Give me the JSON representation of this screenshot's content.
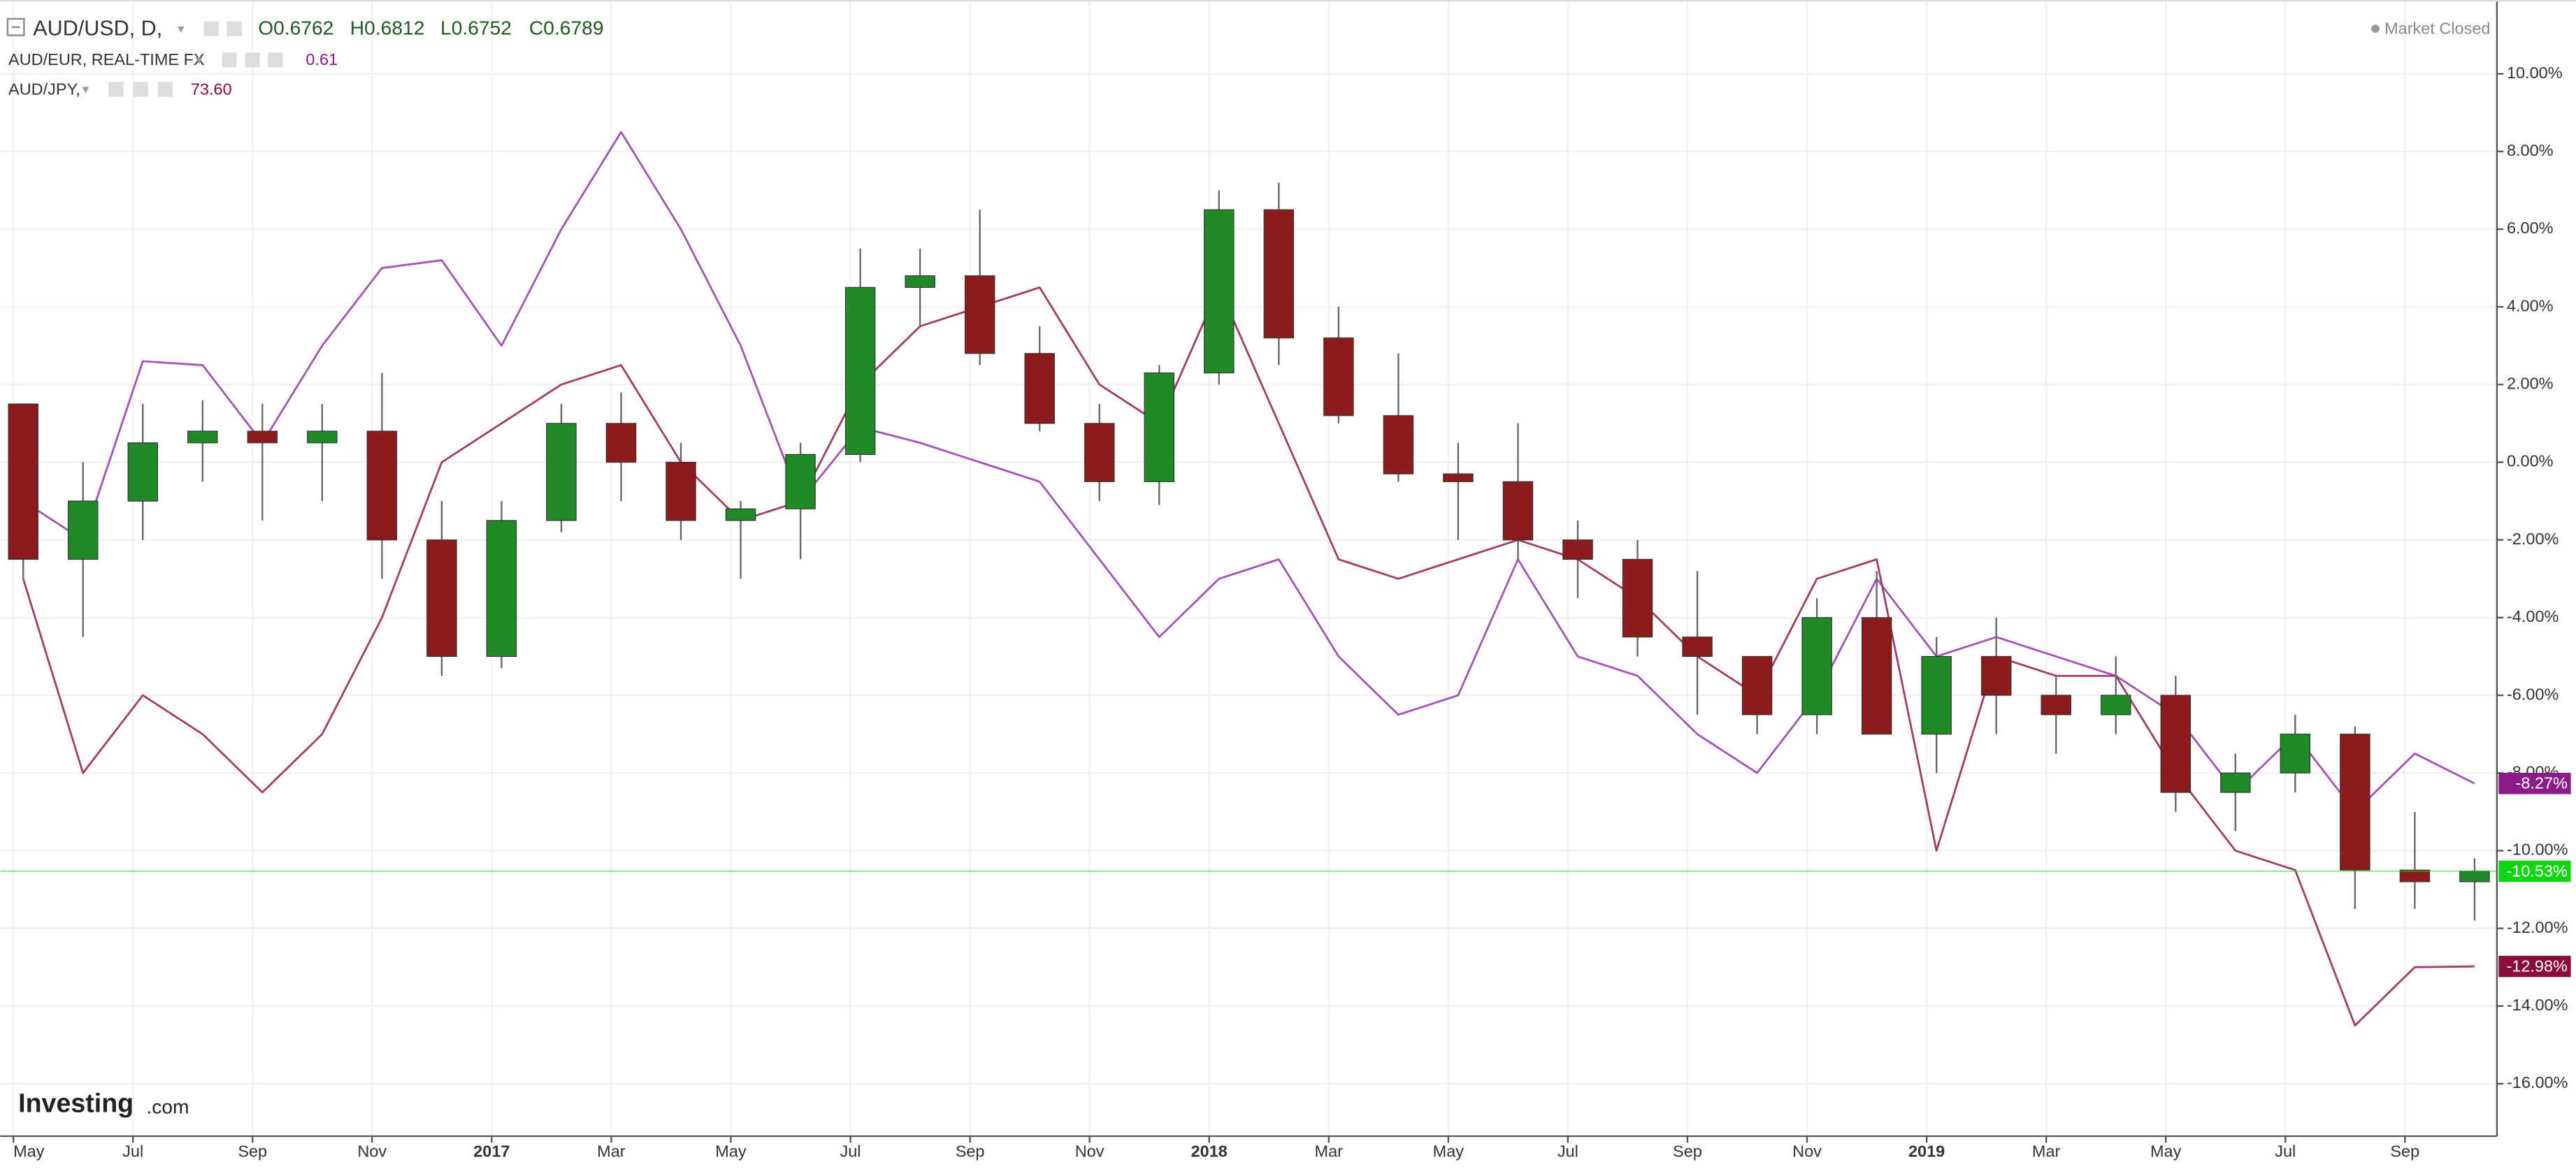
{
  "chart_data": {
    "type": "candlestick",
    "status": "Market Closed",
    "logo": {
      "name": "Investing",
      "suffix": ".com"
    },
    "categories": [
      "May",
      null,
      "Jul",
      null,
      "Sep",
      null,
      "Nov",
      null,
      "2017",
      null,
      "Mar",
      null,
      "May",
      null,
      "Jul",
      null,
      "Sep",
      null,
      "Nov",
      null,
      "2018",
      null,
      "Mar",
      null,
      "May",
      null,
      "Jul",
      null,
      "Sep",
      null,
      "Nov",
      null,
      "2019",
      null,
      "Mar",
      null,
      "May",
      null,
      "Jul",
      null,
      "Sep",
      null
    ],
    "ylim": [
      -17.35,
      11.9
    ],
    "yticks": [
      {
        "value": 10,
        "label": "10.00%"
      },
      {
        "value": 8,
        "label": "8.00%"
      },
      {
        "value": 6,
        "label": "6.00%"
      },
      {
        "value": 4,
        "label": "4.00%"
      },
      {
        "value": 2,
        "label": "2.00%"
      },
      {
        "value": 0,
        "label": "0.00%"
      },
      {
        "value": -2,
        "label": "-2.00%"
      },
      {
        "value": -4,
        "label": "-4.00%"
      },
      {
        "value": -6,
        "label": "-6.00%"
      },
      {
        "value": -8,
        "label": "-8.00%"
      },
      {
        "value": -10,
        "label": "-10.00%"
      },
      {
        "value": -12,
        "label": "-12.00%"
      },
      {
        "value": -14,
        "label": "-14.00%"
      },
      {
        "value": -16,
        "label": "-16.00%"
      }
    ],
    "grid": true,
    "series": [
      {
        "name": "AUD/USD, D,",
        "kind": "candlestick",
        "up_color": "#1f8a26",
        "down_color": "#8e1b1b",
        "last_color": "#12d512",
        "quote": [
          "O0.6762",
          "H0.6812",
          "L0.6752",
          "C0.6789"
        ],
        "last_label": "-10.53%",
        "open": [
          1.5,
          -2.5,
          -1,
          0.5,
          0.8,
          0.5,
          0.8,
          -2,
          -5,
          -1.5,
          1,
          0,
          -1.5,
          -1.2,
          0.2,
          4.5,
          4.8,
          2.8,
          1,
          -0.5,
          2.3,
          6.5,
          3.2,
          1.2,
          -0.3,
          -0.5,
          -2,
          -2.5,
          -4.5,
          -5,
          -6.5,
          -4,
          -7,
          -5,
          -6,
          -6.5,
          -6,
          -8.5,
          -8,
          -7,
          -10.5,
          -10.8
        ],
        "high": [
          1.5,
          0,
          1.5,
          1.6,
          1.5,
          1.5,
          2.3,
          -1,
          -1,
          1.5,
          1.8,
          0.5,
          -1,
          0.5,
          5.5,
          5.5,
          6.5,
          3.5,
          1.5,
          2.5,
          7,
          7.2,
          4,
          2.8,
          0.5,
          1,
          -1.5,
          -2,
          -2.8,
          -5,
          -3.5,
          -2.8,
          -4.5,
          -4,
          -5.5,
          -5,
          -5.5,
          -7.5,
          -6.5,
          -6.8,
          -9,
          -10.2
        ],
        "low": [
          -3,
          -4.5,
          -2,
          -0.5,
          -1.5,
          -1,
          -3,
          -5.5,
          -5.3,
          -1.8,
          -1,
          -2,
          -3,
          -2.5,
          0,
          3.5,
          2.5,
          0.8,
          -1,
          -1.1,
          2,
          2.5,
          1,
          -0.5,
          -2,
          -2.5,
          -3.5,
          -5,
          -6.5,
          -7,
          -7,
          -7,
          -8,
          -7,
          -7.5,
          -7,
          -9,
          -9.5,
          -8.5,
          -11.5,
          -11.5,
          -11.8
        ],
        "close": [
          -2.5,
          -1,
          0.5,
          0.8,
          0.5,
          0.8,
          -2,
          -5,
          -1.5,
          1,
          0,
          -1.5,
          -1.2,
          0.2,
          4.5,
          4.8,
          2.8,
          1,
          -0.5,
          2.3,
          6.5,
          3.2,
          1.2,
          -0.3,
          -0.5,
          -2,
          -2.5,
          -4.5,
          -5,
          -6.5,
          -4,
          -7,
          -5,
          -6,
          -6.5,
          -6,
          -8.5,
          -8,
          -7,
          -10.5,
          -10.8,
          -10.53
        ]
      },
      {
        "name": "AUD/EUR, REAL-TIME FX",
        "kind": "line",
        "color": "#a453b8",
        "last_color": "#8b1a8b",
        "quote": "0.61",
        "last_label": "-8.27%",
        "values": [
          -1,
          -2,
          2.6,
          2.5,
          0.5,
          3,
          5,
          5.2,
          3,
          6,
          8.5,
          6,
          3,
          -1,
          0.9,
          0.5,
          0,
          -0.5,
          -2.5,
          -4.5,
          -3,
          -2.5,
          -5,
          -6.5,
          -6,
          -2.5,
          -5,
          -5.5,
          -7,
          -8,
          -6,
          -3,
          -5,
          -4.5,
          -5,
          -5.5,
          -6.5,
          -8.5,
          -7,
          -9,
          -7.5,
          -8.27
        ]
      },
      {
        "name": "AUD/JPY,",
        "kind": "line",
        "color": "#a23c6c",
        "last_color": "#880c3c",
        "quote": "73.60",
        "last_label": "-12.98%",
        "values": [
          -3,
          -8,
          -6,
          -7,
          -8.5,
          -7,
          -4,
          0,
          1,
          2,
          2.5,
          0,
          -1.5,
          -1,
          2,
          3.5,
          4,
          4.5,
          2,
          1,
          4.5,
          1,
          -2.5,
          -3,
          -2.5,
          -2,
          -2.5,
          -3.5,
          -5,
          -6,
          -3,
          -2.5,
          -10,
          -5,
          -5.5,
          -5.5,
          -8,
          -10,
          -10.5,
          -14.5,
          -13,
          -12.98
        ]
      }
    ]
  }
}
